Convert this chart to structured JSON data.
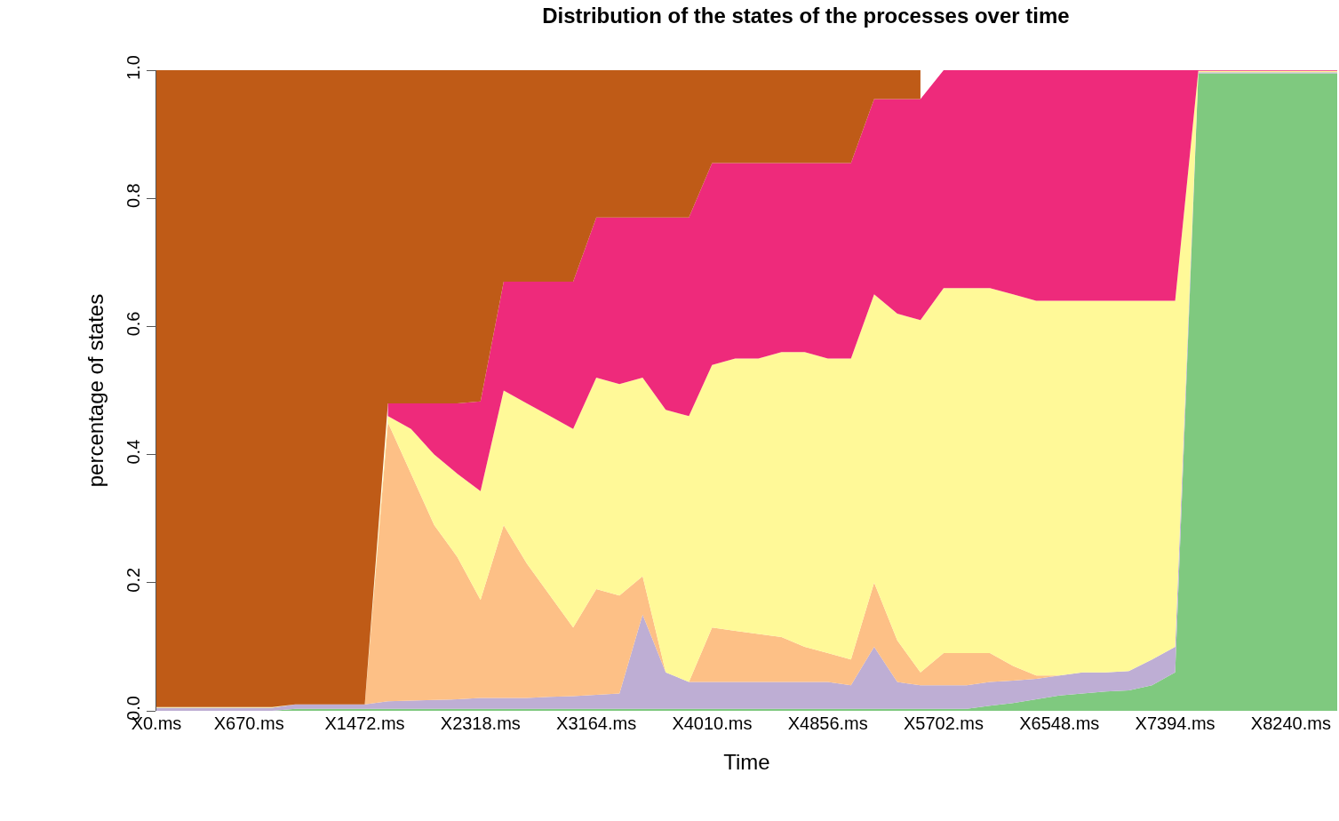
{
  "chart_data": {
    "type": "area",
    "stacked": true,
    "title": "Distribution of the states of the processes over time",
    "xlabel": "Time",
    "ylabel": "percentage of states",
    "categories": [
      "X0.ms",
      null,
      null,
      null,
      "X670.ms",
      null,
      null,
      null,
      null,
      "X1472.ms",
      null,
      null,
      null,
      null,
      "X2318.ms",
      null,
      null,
      null,
      null,
      "X3164.ms",
      null,
      null,
      null,
      null,
      "X4010.ms",
      null,
      null,
      null,
      null,
      "X4856.ms",
      null,
      null,
      null,
      null,
      "X5702.ms",
      null,
      null,
      null,
      null,
      "X6548.ms",
      null,
      null,
      null,
      null,
      "X7394.ms",
      null,
      null,
      null,
      null,
      "X8240.ms",
      null,
      null
    ],
    "series": [
      {
        "color": "#7fc97f",
        "values": [
          0,
          0,
          0,
          0,
          0,
          0,
          0.003,
          0.003,
          0.003,
          0.003,
          0.003,
          0.003,
          0.003,
          0.003,
          0.003,
          0.003,
          0.003,
          0.003,
          0.003,
          0.003,
          0.003,
          0.003,
          0.003,
          0.003,
          0.003,
          0.003,
          0.003,
          0.003,
          0.003,
          0.003,
          0.003,
          0.003,
          0.003,
          0.003,
          0.003,
          0.003,
          0.008,
          0.012,
          0.018,
          0.024,
          0.027,
          0.03,
          0.032,
          0.04,
          0.06,
          0.995,
          0.995,
          0.995,
          0.995,
          0.995,
          0.995,
          0.995
        ]
      },
      {
        "color": "#beaed4",
        "values": [
          0.005,
          0.005,
          0.005,
          0.005,
          0.005,
          0.005,
          0.007,
          0.007,
          0.007,
          0.007,
          0.012,
          0.013,
          0.014,
          0.015,
          0.017,
          0.017,
          0.017,
          0.019,
          0.02,
          0.022,
          0.024,
          0.147,
          0.057,
          0.042,
          0.042,
          0.042,
          0.042,
          0.042,
          0.042,
          0.042,
          0.037,
          0.097,
          0.042,
          0.037,
          0.037,
          0.037,
          0.037,
          0.035,
          0.032,
          0.031,
          0.033,
          0.03,
          0.03,
          0.04,
          0.04,
          0.002,
          0.002,
          0.002,
          0.002,
          0.002,
          0.002,
          0.002
        ]
      },
      {
        "color": "#fdc086",
        "values": [
          0,
          0,
          0,
          0,
          0,
          0,
          0,
          0,
          0,
          0,
          0.435,
          0.354,
          0.273,
          0.222,
          0.153,
          0.27,
          0.21,
          0.158,
          0.107,
          0.165,
          0.153,
          0.06,
          0,
          0,
          0.085,
          0.08,
          0.075,
          0.07,
          0.055,
          0.045,
          0.04,
          0.1,
          0.065,
          0.02,
          0.05,
          0.05,
          0.045,
          0.023,
          0.005,
          0,
          0,
          0,
          0,
          0,
          0,
          0,
          0,
          0,
          0,
          0,
          0,
          0
        ]
      },
      {
        "color": "#fff998",
        "values": [
          0.001,
          0.001,
          0.001,
          0.001,
          0.001,
          0.001,
          0,
          0,
          0,
          0,
          0.01,
          0.07,
          0.11,
          0.13,
          0.17,
          0.21,
          0.25,
          0.28,
          0.31,
          0.33,
          0.33,
          0.31,
          0.41,
          0.415,
          0.41,
          0.425,
          0.43,
          0.445,
          0.46,
          0.46,
          0.47,
          0.45,
          0.51,
          0.55,
          0.57,
          0.57,
          0.57,
          0.58,
          0.585,
          0.585,
          0.58,
          0.58,
          0.578,
          0.56,
          0.54,
          0.002,
          0.002,
          0.002,
          0.002,
          0.002,
          0.002,
          0.002
        ]
      },
      {
        "color": "#ee2a7b",
        "values": [
          null,
          null,
          null,
          null,
          null,
          null,
          null,
          null,
          null,
          null,
          0.02,
          0.04,
          0.08,
          0.11,
          0.14,
          0.17,
          0.19,
          0.21,
          0.23,
          0.25,
          0.26,
          0.25,
          0.3,
          0.31,
          0.315,
          0.305,
          0.305,
          0.295,
          0.295,
          0.305,
          0.305,
          0.305,
          0.335,
          0.345,
          0.34,
          0.34,
          0.34,
          0.35,
          0.36,
          0.36,
          0.36,
          0.36,
          0.36,
          0.36,
          0.36,
          0.001,
          0.001,
          0.001,
          0.001,
          0.001,
          0.001,
          0.001
        ]
      },
      {
        "color": "#bf5b17",
        "values": [
          0.994,
          0.994,
          0.994,
          0.994,
          0.994,
          0.994,
          0.99,
          0.99,
          0.99,
          0.99,
          0.52,
          0.52,
          0.52,
          0.52,
          0.52,
          0.33,
          0.33,
          0.33,
          0.33,
          0.23,
          0.23,
          0.23,
          0.23,
          0.23,
          0.145,
          0.145,
          0.145,
          0.145,
          0.145,
          0.145,
          0.145,
          0.045,
          0.045,
          0.045,
          null,
          null,
          null,
          null,
          null,
          null,
          null,
          null,
          null,
          null,
          null,
          null,
          null,
          null,
          null,
          null,
          null,
          null
        ]
      }
    ],
    "ylim": [
      0,
      1
    ],
    "yticks": [
      {
        "value": 0,
        "label": "0.0"
      },
      0.2,
      0.4,
      0.6,
      0.8,
      {
        "value": 1,
        "label": "1.0"
      }
    ],
    "tick_labels": "xy"
  }
}
